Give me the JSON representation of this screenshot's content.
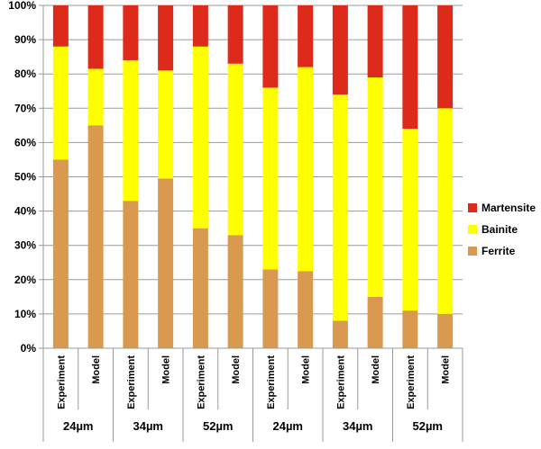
{
  "chart_data": {
    "type": "bar",
    "stacked": true,
    "grid": true,
    "legend_position": "right",
    "ylim": [
      0,
      100
    ],
    "y_ticks": [
      "0%",
      "10%",
      "20%",
      "30%",
      "40%",
      "50%",
      "60%",
      "70%",
      "80%",
      "90%",
      "100%"
    ],
    "categories": [
      "Experiment",
      "Model",
      "Experiment",
      "Model",
      "Experiment",
      "Model",
      "Experiment",
      "Model",
      "Experiment",
      "Model",
      "Experiment",
      "Model"
    ],
    "groups": [
      "24µm",
      "34µm",
      "52µm",
      "24µm",
      "34µm",
      "52µm"
    ],
    "series": [
      {
        "name": "Ferrite",
        "color": "#D99A50",
        "values": [
          55,
          65,
          43,
          49.5,
          35,
          33,
          23,
          22.5,
          8,
          15,
          11,
          10
        ]
      },
      {
        "name": "Bainite",
        "color": "#FFFF00",
        "values": [
          33,
          16.5,
          41,
          31.5,
          53,
          50,
          53,
          59.5,
          66,
          64,
          53,
          60
        ]
      },
      {
        "name": "Martensite",
        "color": "#DD2A1A",
        "values": [
          12,
          18.5,
          16,
          19,
          12,
          17,
          24,
          18,
          26,
          21,
          36,
          30
        ]
      }
    ],
    "legend_order": [
      "Martensite",
      "Bainite",
      "Ferrite"
    ]
  }
}
